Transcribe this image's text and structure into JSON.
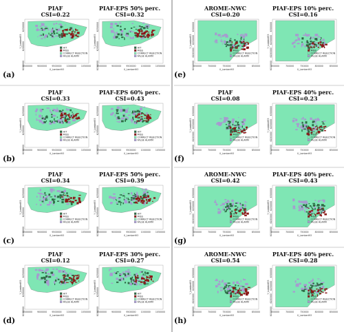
{
  "legend": [
    "HIT",
    "MISS",
    "CORRECT REJECTION",
    "FALSE ALARM"
  ],
  "axis_x": "X_Lambert93",
  "axis_y": "Y_Lambert93",
  "colors": {
    "sea": "#7fe6b4",
    "hit": "#2e6b45",
    "miss": "#8b1a1a",
    "fa": "#a79ad0",
    "cr": "#7fe6b4",
    "border": "#888888"
  },
  "rows": [
    {
      "label": "(a)",
      "domain": "corsica",
      "left": {
        "title": "PIAF",
        "csi": "CSI=0.22",
        "coverage": "m1"
      },
      "right": {
        "title": "PIAF-EPS 50% perc.",
        "csi": "CSI=0.32",
        "coverage": "m1b"
      },
      "xticks": [
        "8500000",
        "9000000",
        "9500000",
        "1000000",
        "1050000"
      ],
      "yticks": [
        "6250000",
        "6200000",
        "6150000"
      ]
    },
    {
      "label": "(b)",
      "domain": "corsica",
      "left": {
        "title": "PIAF",
        "csi": "CSI=0.33",
        "coverage": "m2"
      },
      "right": {
        "title": "PIAF-EPS 60% perc.",
        "csi": "CSI=0.43",
        "coverage": "m2b"
      },
      "xticks": [
        "8500000",
        "9000000",
        "9500000",
        "1000000",
        "1050000"
      ],
      "yticks": [
        "6250000",
        "6200000",
        "6150000"
      ]
    },
    {
      "label": "(c)",
      "domain": "corsica",
      "left": {
        "title": "PIAF",
        "csi": "CSI=0.34",
        "coverage": "m3"
      },
      "right": {
        "title": "PIAF-EPS 50% perc.",
        "csi": "CSI=0.39",
        "coverage": "m3b"
      },
      "xticks": [
        "8500000",
        "9000000",
        "9500000",
        "1000000",
        "1050000"
      ],
      "yticks": [
        "6250000",
        "6200000",
        "6150000"
      ]
    },
    {
      "label": "(d)",
      "domain": "corsica",
      "left": {
        "title": "PIAF",
        "csi": "CSI=0.12",
        "coverage": "m4"
      },
      "right": {
        "title": "PIAF-EPS 30% perc.",
        "csi": "CSI=0.27",
        "coverage": "m4b"
      },
      "xticks": [
        "8500000",
        "9000000",
        "9500000",
        "1000000",
        "1050000"
      ],
      "yticks": [
        "6250000",
        "6200000",
        "6150000"
      ]
    },
    {
      "label": "(e)",
      "domain": "coast",
      "left": {
        "title": "AROME-NWC",
        "csi": "CSI=0.20",
        "coverage": "e1"
      },
      "right": {
        "title": "PIAF-EPS 10% perc.",
        "csi": "CSI=0.16",
        "coverage": "e1b"
      },
      "xticks": [
        "650000",
        "700000",
        "750000",
        "800000",
        "850000"
      ],
      "yticks": [
        "6300000",
        "6250000",
        "6200000",
        "6150000"
      ]
    },
    {
      "label": "(f)",
      "domain": "coast",
      "left": {
        "title": "PIAF",
        "csi": "CSI=0.08",
        "coverage": "f1"
      },
      "right": {
        "title": "PIAF-EPS 40% perc.",
        "csi": "CSI=0.23",
        "coverage": "f1b"
      },
      "xticks": [
        "650000",
        "700000",
        "750000",
        "800000",
        "850000"
      ],
      "yticks": [
        "6300000",
        "6250000",
        "6200000",
        "6150000"
      ]
    },
    {
      "label": "(g)",
      "domain": "coast",
      "left": {
        "title": "AROME-NWC",
        "csi": "CSI=0.42",
        "coverage": "g1"
      },
      "right": {
        "title": "PIAF-EPS 40% perc.",
        "csi": "CSI=0.43",
        "coverage": "g1b"
      },
      "xticks": [
        "650000",
        "700000",
        "750000",
        "800000",
        "850000"
      ],
      "yticks": [
        "6300000",
        "6250000",
        "6200000",
        "6150000"
      ]
    },
    {
      "label": "(h)",
      "domain": "coast",
      "left": {
        "title": "AROME-NWC",
        "csi": "CSI=0.54",
        "coverage": "h1"
      },
      "right": {
        "title": "PIAF-EPS 40% perc.",
        "csi": "CSI=0.28",
        "coverage": "h1b"
      },
      "xticks": [
        "650000",
        "700000",
        "750000",
        "800000",
        "850000"
      ],
      "yticks": [
        "6300000",
        "6250000",
        "6200000",
        "6150000"
      ]
    }
  ]
}
